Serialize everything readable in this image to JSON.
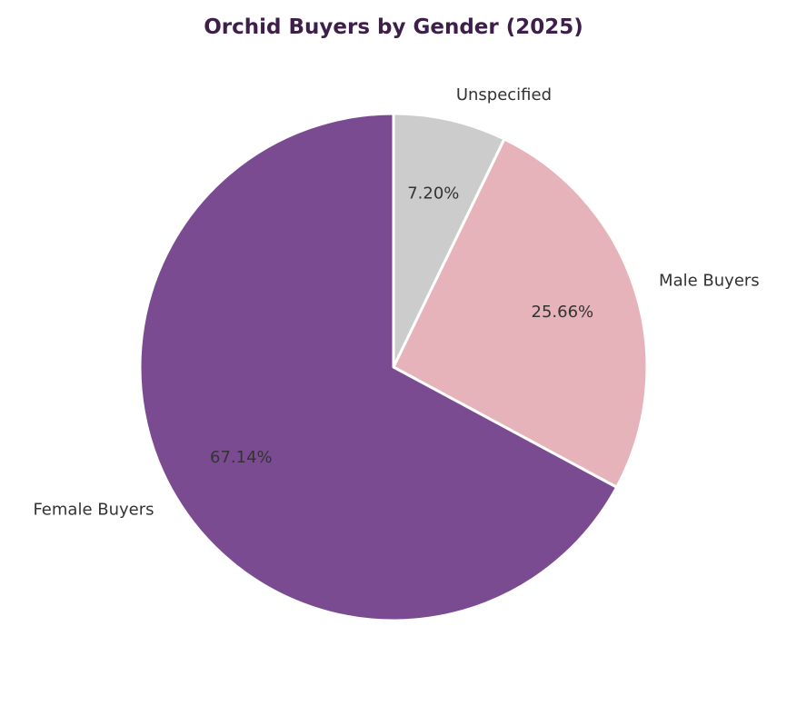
{
  "chart_data": {
    "type": "pie",
    "title": "Orchid Buyers by Gender (2025)",
    "slices": [
      {
        "label": "Unspecified",
        "value": 7.2,
        "pct_label": "7.20%",
        "color": "#cccccc"
      },
      {
        "label": "Male Buyers",
        "value": 25.66,
        "pct_label": "25.66%",
        "color": "#e6b3bb"
      },
      {
        "label": "Female Buyers",
        "value": 67.14,
        "pct_label": "67.14%",
        "color": "#7a4b90"
      }
    ],
    "start_angle_deg": 90,
    "direction": "clockwise",
    "wedge_edge_color": "#ffffff"
  }
}
